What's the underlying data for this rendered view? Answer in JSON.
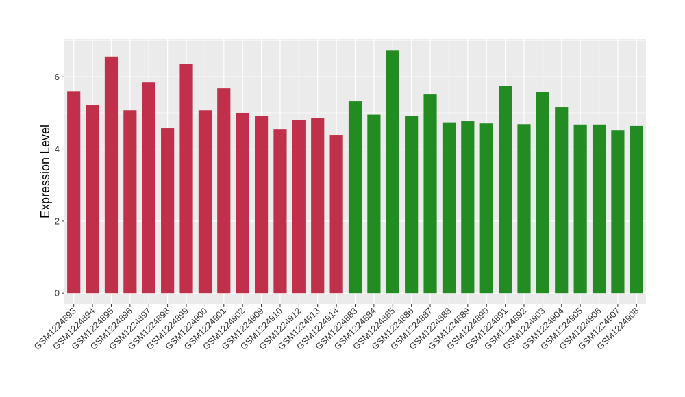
{
  "chart_data": {
    "type": "bar",
    "title": "",
    "xlabel": "",
    "ylabel": "Expression Level",
    "ylim": [
      -0.3,
      7.05
    ],
    "yticks": [
      0,
      2,
      4,
      6
    ],
    "grid": true,
    "legend": "none",
    "categories": [
      "GSM1224893",
      "GSM1224894",
      "GSM1224895",
      "GSM1224896",
      "GSM1224897",
      "GSM1224898",
      "GSM1224899",
      "GSM1224900",
      "GSM1224901",
      "GSM1224902",
      "GSM1224909",
      "GSM1224910",
      "GSM1224912",
      "GSM1224913",
      "GSM1224914",
      "GSM1224883",
      "GSM1224884",
      "GSM1224885",
      "GSM1224886",
      "GSM1224887",
      "GSM1224888",
      "GSM1224889",
      "GSM1224890",
      "GSM1224891",
      "GSM1224892",
      "GSM1224903",
      "GSM1224904",
      "GSM1224905",
      "GSM1224906",
      "GSM1224907",
      "GSM1224908"
    ],
    "values": [
      5.6,
      5.22,
      6.56,
      5.07,
      5.85,
      4.58,
      6.35,
      5.07,
      5.68,
      5.0,
      4.91,
      4.54,
      4.8,
      4.86,
      4.39,
      5.32,
      4.95,
      6.74,
      4.91,
      5.51,
      4.74,
      4.77,
      4.71,
      5.74,
      4.69,
      5.57,
      5.15,
      4.68,
      4.68,
      4.52,
      4.64
    ],
    "groups": [
      "red",
      "red",
      "red",
      "red",
      "red",
      "red",
      "red",
      "red",
      "red",
      "red",
      "red",
      "red",
      "red",
      "red",
      "red",
      "green",
      "green",
      "green",
      "green",
      "green",
      "green",
      "green",
      "green",
      "green",
      "green",
      "green",
      "green",
      "green",
      "green",
      "green",
      "green"
    ],
    "colors": {
      "red": "#c0304a",
      "green": "#228b22",
      "panel": "#ebebeb",
      "grid": "#ffffff"
    }
  }
}
